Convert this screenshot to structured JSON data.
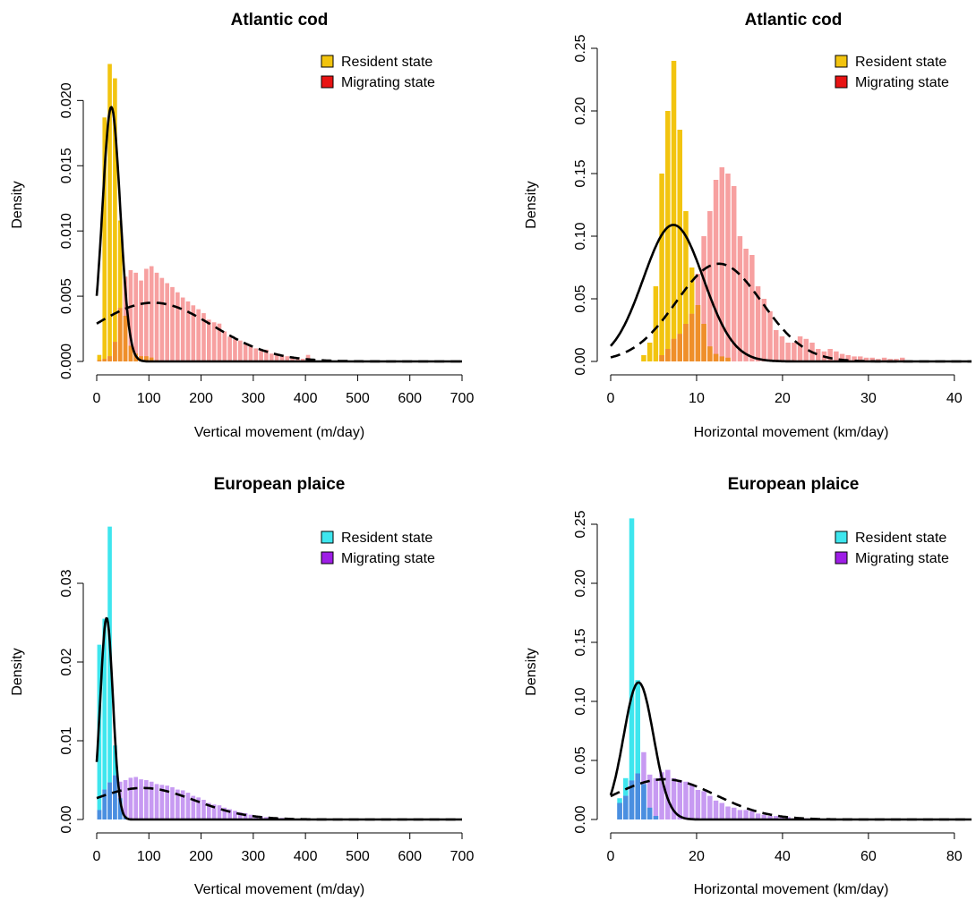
{
  "chart_data": [
    {
      "type": "histogram",
      "title": "Atlantic cod",
      "xlabel": "Vertical movement (m/day)",
      "ylabel": "Density",
      "xlim": [
        0,
        700
      ],
      "ylim": [
        0,
        0.024
      ],
      "xticks": [
        "0",
        "100",
        "200",
        "300",
        "400",
        "500",
        "600",
        "700"
      ],
      "yticks": [
        "0.000",
        "0.005",
        "0.010",
        "0.015",
        "0.020"
      ],
      "xtick_values": [
        0,
        100,
        200,
        300,
        400,
        500,
        600,
        700
      ],
      "ytick_values": [
        0,
        0.005,
        0.01,
        0.015,
        0.02
      ],
      "bin_width": 10,
      "overlap_color": "#ef8f2a",
      "legend": {
        "position": "top-right",
        "items": [
          "Resident state",
          "Migrating state"
        ]
      },
      "series": [
        {
          "name": "Resident state",
          "color": "#f2c40f",
          "legend_color": "#f2c40f",
          "bin_starts": [
            0,
            10,
            20,
            30,
            40,
            50,
            60,
            70,
            80,
            90,
            100,
            110
          ],
          "densities": [
            0.0005,
            0.0187,
            0.0228,
            0.0217,
            0.0108,
            0.0035,
            0.0012,
            0.0006,
            0.0004,
            0.0004,
            0.0003,
            0.0001
          ]
        },
        {
          "name": "Migrating state",
          "color": "#f7a0a0",
          "legend_color": "#e81414",
          "bin_starts": [
            0,
            10,
            20,
            30,
            40,
            50,
            60,
            70,
            80,
            90,
            100,
            110,
            120,
            130,
            140,
            150,
            160,
            170,
            180,
            190,
            200,
            210,
            220,
            230,
            240,
            250,
            260,
            270,
            280,
            290,
            300,
            310,
            320,
            330,
            340,
            350,
            360,
            370,
            380,
            390,
            400,
            410
          ],
          "densities": [
            0.0001,
            0.0002,
            0.0004,
            0.0015,
            0.0041,
            0.0065,
            0.007,
            0.0068,
            0.0062,
            0.0071,
            0.0073,
            0.0068,
            0.0064,
            0.006,
            0.0057,
            0.0053,
            0.0049,
            0.0046,
            0.0043,
            0.004,
            0.0037,
            0.0032,
            0.003,
            0.0029,
            0.0023,
            0.0019,
            0.0017,
            0.0016,
            0.0014,
            0.0012,
            0.001,
            0.0008,
            0.0009,
            0.0006,
            0.0005,
            0.0005,
            0.0004,
            0.0003,
            0.0003,
            0.0002,
            0.0005,
            0.0001
          ]
        }
      ],
      "curves": [
        {
          "series": "Resident state",
          "style": "solid",
          "mean": 28,
          "sd": 17,
          "peak": 0.0195
        },
        {
          "series": "Migrating state",
          "style": "dashed",
          "mean": 108,
          "sd": 115,
          "peak": 0.0045
        }
      ]
    },
    {
      "type": "histogram",
      "title": "Atlantic cod",
      "xlabel": "Horizontal movement (km/day)",
      "ylabel": "Density",
      "xlim": [
        0,
        42
      ],
      "ylim": [
        0,
        0.25
      ],
      "xticks": [
        "0",
        "10",
        "20",
        "30",
        "40"
      ],
      "yticks": [
        "0.00",
        "0.05",
        "0.10",
        "0.15",
        "0.20",
        "0.25"
      ],
      "xtick_values": [
        0,
        10,
        20,
        30,
        40
      ],
      "ytick_values": [
        0,
        0.05,
        0.1,
        0.15,
        0.2,
        0.25
      ],
      "bin_width": 0.7,
      "overlap_color": "#ef8f2a",
      "legend": {
        "position": "top-right",
        "items": [
          "Resident state",
          "Migrating state"
        ]
      },
      "series": [
        {
          "name": "Resident state",
          "color": "#f2c40f",
          "legend_color": "#f2c40f",
          "bin_starts": [
            3.5,
            4.2,
            4.9,
            5.6,
            6.3,
            7.0,
            7.7,
            8.4,
            9.1,
            9.8,
            10.5,
            11.2,
            11.9,
            12.6,
            13.3
          ],
          "densities": [
            0.005,
            0.015,
            0.06,
            0.15,
            0.2,
            0.24,
            0.185,
            0.12,
            0.075,
            0.045,
            0.03,
            0.012,
            0.006,
            0.004,
            0.003
          ]
        },
        {
          "name": "Migrating state",
          "color": "#f7a0a0",
          "legend_color": "#e81414",
          "bin_starts": [
            5.6,
            6.3,
            7.0,
            7.7,
            8.4,
            9.1,
            9.8,
            10.5,
            11.2,
            11.9,
            12.6,
            13.3,
            14.0,
            14.7,
            15.4,
            16.1,
            16.8,
            17.5,
            18.2,
            18.9,
            19.6,
            20.3,
            21.0,
            21.7,
            22.4,
            23.1,
            23.8,
            24.5,
            25.2,
            25.9,
            26.6,
            27.3,
            28.0,
            28.7,
            29.4,
            30.1,
            30.8,
            31.5,
            32.2,
            32.9,
            33.6,
            34.3
          ],
          "densities": [
            0.005,
            0.01,
            0.018,
            0.022,
            0.03,
            0.038,
            0.07,
            0.1,
            0.12,
            0.145,
            0.155,
            0.15,
            0.14,
            0.1,
            0.09,
            0.085,
            0.06,
            0.05,
            0.04,
            0.025,
            0.02,
            0.015,
            0.015,
            0.02,
            0.018,
            0.015,
            0.01,
            0.008,
            0.01,
            0.008,
            0.006,
            0.005,
            0.004,
            0.004,
            0.003,
            0.003,
            0.002,
            0.003,
            0.002,
            0.002,
            0.003,
            0.001
          ]
        }
      ],
      "curves": [
        {
          "series": "Resident state",
          "style": "solid",
          "mean": 7.3,
          "sd": 3.5,
          "peak": 0.109
        },
        {
          "series": "Migrating state",
          "style": "dashed",
          "mean": 12.6,
          "sd": 5,
          "peak": 0.078
        }
      ]
    },
    {
      "type": "histogram",
      "title": "European plaice",
      "xlabel": "Vertical movement (m/day)",
      "ylabel": "Density",
      "xlim": [
        0,
        700
      ],
      "ylim": [
        0,
        0.0375
      ],
      "xticks": [
        "0",
        "100",
        "200",
        "300",
        "400",
        "500",
        "600",
        "700"
      ],
      "yticks": [
        "0.00",
        "0.01",
        "0.02",
        "0.03"
      ],
      "xtick_values": [
        0,
        100,
        200,
        300,
        400,
        500,
        600,
        700
      ],
      "ytick_values": [
        0,
        0.01,
        0.02,
        0.03
      ],
      "bin_width": 10,
      "overlap_color": "#4a8fe0",
      "legend": {
        "position": "top-right",
        "items": [
          "Resident state",
          "Migrating state"
        ]
      },
      "series": [
        {
          "name": "Resident state",
          "color": "#3ee6ee",
          "legend_color": "#3ee6ee",
          "bin_starts": [
            0,
            10,
            20,
            30,
            40,
            50,
            60
          ],
          "densities": [
            0.0222,
            0.0255,
            0.0372,
            0.0094,
            0.0027,
            0.0004,
            0.0001
          ]
        },
        {
          "name": "Migrating state",
          "color": "#c79af2",
          "legend_color": "#9e1ee6",
          "bin_starts": [
            0,
            10,
            20,
            30,
            40,
            50,
            60,
            70,
            80,
            90,
            100,
            110,
            120,
            130,
            140,
            150,
            160,
            170,
            180,
            190,
            200,
            210,
            220,
            230,
            240,
            250,
            260,
            270,
            280,
            290,
            300,
            310,
            320,
            330,
            340,
            350,
            360,
            370
          ],
          "densities": [
            0.0012,
            0.0038,
            0.0047,
            0.0056,
            0.0048,
            0.005,
            0.0053,
            0.0054,
            0.0051,
            0.005,
            0.0048,
            0.0045,
            0.0044,
            0.0043,
            0.0041,
            0.0038,
            0.0037,
            0.0034,
            0.003,
            0.0028,
            0.0025,
            0.0021,
            0.0019,
            0.0018,
            0.0015,
            0.0013,
            0.0011,
            0.0009,
            0.0008,
            0.0006,
            0.0005,
            0.0004,
            0.0003,
            0.0003,
            0.0002,
            0.0002,
            0.0001,
            0.0001
          ]
        }
      ],
      "curves": [
        {
          "series": "Resident state",
          "style": "solid",
          "mean": 19,
          "sd": 12,
          "peak": 0.0256
        },
        {
          "series": "Migrating state",
          "style": "dashed",
          "mean": 88,
          "sd": 100,
          "peak": 0.004
        }
      ]
    },
    {
      "type": "histogram",
      "title": "European plaice",
      "xlabel": "Horizontal movement (km/day)",
      "ylabel": "Density",
      "xlim": [
        0,
        84
      ],
      "ylim": [
        0,
        0.25
      ],
      "xticks": [
        "0",
        "20",
        "40",
        "60",
        "80"
      ],
      "yticks": [
        "0.00",
        "0.05",
        "0.10",
        "0.15",
        "0.20",
        "0.25"
      ],
      "xtick_values": [
        0,
        20,
        40,
        60,
        80
      ],
      "ytick_values": [
        0,
        0.05,
        0.1,
        0.15,
        0.2,
        0.25
      ],
      "bin_width": 1.4,
      "overlap_color": "#4a8fe0",
      "legend": {
        "position": "top-right",
        "items": [
          "Resident state",
          "Migrating state"
        ]
      },
      "series": [
        {
          "name": "Resident state",
          "color": "#3ee6ee",
          "legend_color": "#3ee6ee",
          "bin_starts": [
            1.4,
            2.8,
            4.2,
            5.6,
            7.0,
            8.4,
            9.8
          ],
          "densities": [
            0.018,
            0.035,
            0.255,
            0.118,
            0.03,
            0.01,
            0.003
          ]
        },
        {
          "name": "Migrating state",
          "color": "#c79af2",
          "legend_color": "#9e1ee6",
          "bin_starts": [
            1.4,
            2.8,
            4.2,
            5.6,
            7.0,
            8.4,
            9.8,
            11.2,
            12.6,
            14.0,
            15.4,
            16.8,
            18.2,
            19.6,
            21.0,
            22.4,
            23.8,
            25.2,
            26.6,
            28.0,
            29.4,
            30.8,
            32.2,
            33.6,
            35.0,
            36.4,
            37.8,
            39.2,
            40.6,
            42.0,
            43.4,
            44.8
          ],
          "densities": [
            0.014,
            0.02,
            0.033,
            0.039,
            0.057,
            0.038,
            0.035,
            0.04,
            0.042,
            0.035,
            0.033,
            0.032,
            0.03,
            0.025,
            0.024,
            0.02,
            0.016,
            0.014,
            0.011,
            0.01,
            0.008,
            0.008,
            0.007,
            0.005,
            0.004,
            0.003,
            0.003,
            0.002,
            0.002,
            0.001,
            0.001,
            0.001
          ]
        }
      ],
      "curves": [
        {
          "series": "Resident state",
          "style": "solid",
          "mean": 6.5,
          "sd": 3.5,
          "peak": 0.116
        },
        {
          "series": "Migrating state",
          "style": "dashed",
          "mean": 12.5,
          "sd": 12,
          "peak": 0.034
        }
      ]
    }
  ]
}
